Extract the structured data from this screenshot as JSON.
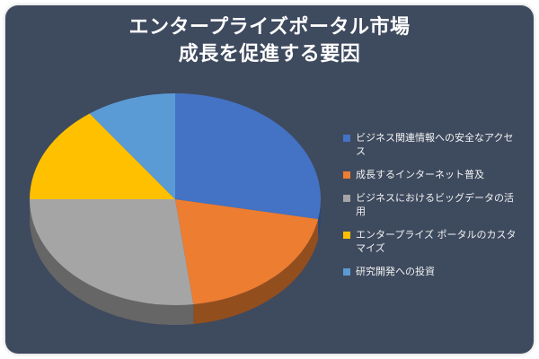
{
  "chart_data": {
    "type": "pie",
    "title_lines": [
      "エンタープライズポータル市場",
      "成長を促進する要因"
    ],
    "slices": [
      {
        "label": "ビジネス関連情報への安全なアクセス",
        "value": 28,
        "color": "#4472c4"
      },
      {
        "label": "成長するインターネット普及",
        "value": 20,
        "color": "#ed7d31"
      },
      {
        "label": "ビジネスにおけるビッグデータの活用",
        "value": 27,
        "color": "#a5a5a5"
      },
      {
        "label": "エンタープライズ ポータルのカスタマイズ",
        "value": 15,
        "color": "#ffc000"
      },
      {
        "label": "研究開発への投資",
        "value": 10,
        "color": "#5b9bd5"
      }
    ],
    "legend_position": "right"
  }
}
